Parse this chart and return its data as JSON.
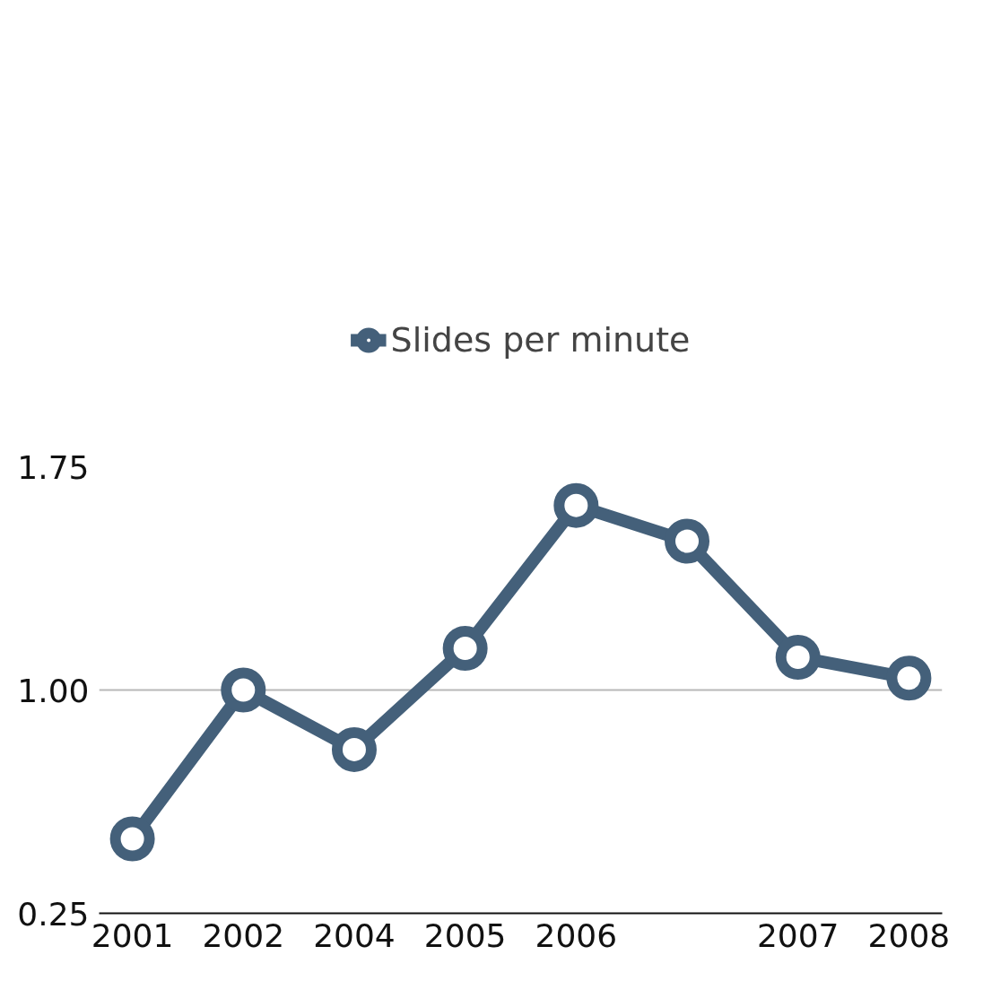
{
  "chart_data": {
    "type": "line",
    "categories": [
      "2001",
      "2002",
      "2004",
      "2005",
      "2006",
      null,
      "2007",
      "2008"
    ],
    "series": [
      {
        "name": "Slides per minute",
        "color": "#44607a",
        "values": [
          0.5,
          1.0,
          0.8,
          1.14,
          1.62,
          1.5,
          1.11,
          1.04
        ]
      }
    ],
    "ylim": [
      0.25,
      1.75
    ],
    "yticks": [
      0.25,
      {
        "value": 1,
        "label": "1.00"
      },
      1.75
    ],
    "grid": "y",
    "legend": "top",
    "marker": "circle",
    "line_style": "solid"
  }
}
